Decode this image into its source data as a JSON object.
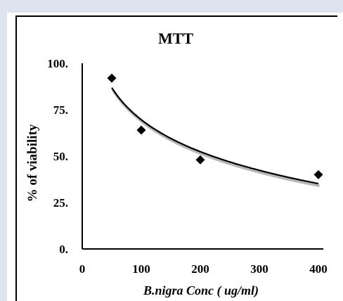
{
  "chart_data": {
    "type": "scatter",
    "title": "MTT",
    "xlabel": "B.nigra Conc ( ug/ml)",
    "ylabel": "% of viability",
    "xlim": [
      0,
      400
    ],
    "ylim": [
      0,
      100
    ],
    "xticks": [
      "0",
      "100",
      "200",
      "300",
      "400"
    ],
    "yticks": [
      "0.",
      "25.",
      "50.",
      "75.",
      "100."
    ],
    "series": [
      {
        "x": [
          50,
          100,
          200,
          400
        ],
        "y": [
          92,
          64,
          48,
          40
        ]
      }
    ],
    "trendline": {
      "type": "logarithmic",
      "x_range": [
        50,
        400
      ]
    },
    "marker_color": "#000000",
    "line_color": "#000000",
    "shadow_color": "#b8b8b8"
  }
}
